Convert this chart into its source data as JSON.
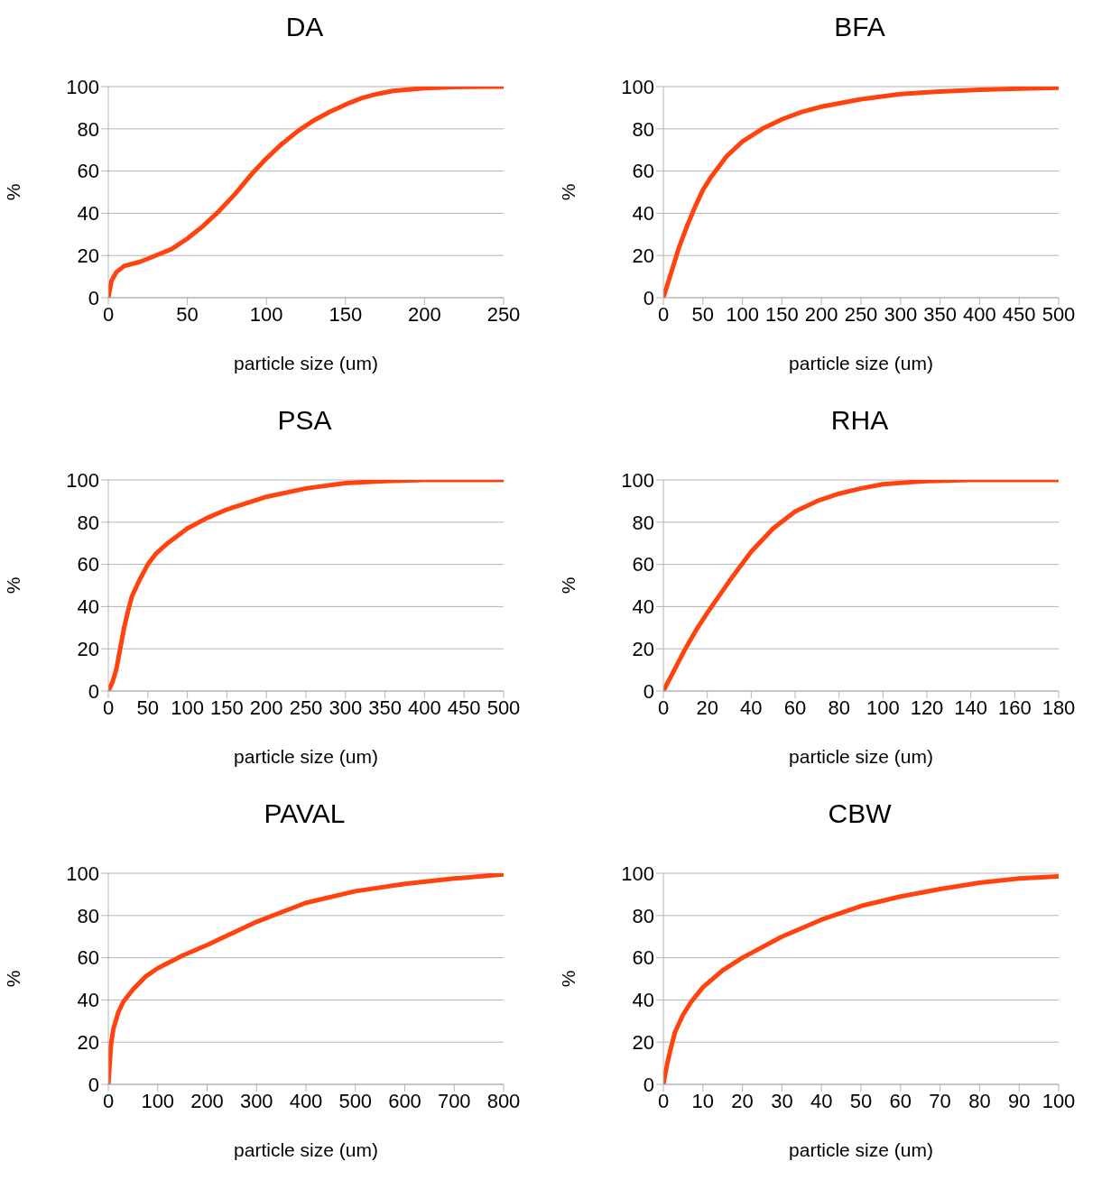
{
  "chart_data": [
    {
      "type": "line",
      "title": "DA",
      "xlabel": "particle size (um)",
      "ylabel": "%",
      "color": "#ff420e",
      "marker": "none",
      "grid": "y",
      "xlim": [
        0,
        250
      ],
      "xticks": [
        0,
        50,
        100,
        150,
        200,
        250
      ],
      "ylim": [
        0,
        100
      ],
      "yticks": [
        0,
        20,
        40,
        60,
        80,
        100
      ],
      "x": [
        0,
        2,
        5,
        10,
        20,
        30,
        40,
        50,
        60,
        70,
        80,
        90,
        100,
        110,
        120,
        130,
        140,
        150,
        160,
        170,
        180,
        200,
        225,
        250
      ],
      "values": [
        0,
        8,
        12,
        15,
        17,
        20,
        23,
        28,
        34,
        41,
        49,
        58,
        66,
        73,
        79,
        84,
        88,
        91.5,
        94.5,
        96.5,
        98,
        99.3,
        99.9,
        100
      ]
    },
    {
      "type": "line",
      "title": "BFA",
      "xlabel": "particle size (um)",
      "ylabel": "%",
      "color": "#ff420e",
      "marker": "none",
      "grid": "y",
      "xlim": [
        0,
        500
      ],
      "xticks": [
        0,
        50,
        100,
        150,
        200,
        250,
        300,
        350,
        400,
        450,
        500
      ],
      "ylim": [
        0,
        100
      ],
      "yticks": [
        0,
        20,
        40,
        60,
        80,
        100
      ],
      "x": [
        0,
        10,
        20,
        30,
        40,
        50,
        60,
        70,
        80,
        100,
        125,
        150,
        175,
        200,
        250,
        300,
        350,
        400,
        450,
        500
      ],
      "values": [
        0,
        12,
        24,
        34,
        43,
        51,
        57,
        62,
        67,
        74,
        80,
        84.5,
        88,
        90.5,
        94,
        96.5,
        97.7,
        98.5,
        99,
        99.5
      ]
    },
    {
      "type": "line",
      "title": "PSA",
      "xlabel": "particle size (um)",
      "ylabel": "%",
      "color": "#ff420e",
      "marker": "none",
      "grid": "y",
      "xlim": [
        0,
        500
      ],
      "xticks": [
        0,
        50,
        100,
        150,
        200,
        250,
        300,
        350,
        400,
        450,
        500
      ],
      "ylim": [
        0,
        100
      ],
      "yticks": [
        0,
        20,
        40,
        60,
        80,
        100
      ],
      "x": [
        0,
        5,
        10,
        15,
        20,
        25,
        30,
        40,
        50,
        60,
        75,
        100,
        125,
        150,
        200,
        250,
        300,
        350,
        400,
        500
      ],
      "values": [
        0,
        4,
        10,
        20,
        30,
        38,
        45,
        53,
        60,
        65,
        70,
        77,
        82,
        86,
        92,
        96,
        98.5,
        99.5,
        100,
        100
      ]
    },
    {
      "type": "line",
      "title": "RHA",
      "xlabel": "particle size (um)",
      "ylabel": "%",
      "color": "#ff420e",
      "marker": "none",
      "grid": "y",
      "xlim": [
        0,
        180
      ],
      "xticks": [
        0,
        20,
        40,
        60,
        80,
        100,
        120,
        140,
        160,
        180
      ],
      "ylim": [
        0,
        100
      ],
      "yticks": [
        0,
        20,
        40,
        60,
        80,
        100
      ],
      "x": [
        0,
        5,
        10,
        15,
        20,
        30,
        40,
        50,
        60,
        70,
        80,
        90,
        100,
        120,
        140,
        180
      ],
      "values": [
        0,
        10,
        20,
        29,
        37,
        52,
        66,
        77,
        85,
        90,
        93.5,
        96,
        98,
        99.5,
        100,
        100
      ]
    },
    {
      "type": "line",
      "title": "PAVAL",
      "xlabel": "particle size (um)",
      "ylabel": "%",
      "color": "#ff420e",
      "marker": "none",
      "grid": "y",
      "xlim": [
        0,
        800
      ],
      "xticks": [
        0,
        100,
        200,
        300,
        400,
        500,
        600,
        700,
        800
      ],
      "ylim": [
        0,
        100
      ],
      "yticks": [
        0,
        20,
        40,
        60,
        80,
        100
      ],
      "x": [
        0,
        3,
        5,
        10,
        20,
        30,
        50,
        75,
        100,
        150,
        200,
        300,
        400,
        500,
        600,
        700,
        800
      ],
      "values": [
        0,
        10,
        18,
        26,
        34,
        39,
        45,
        51,
        55,
        61,
        66,
        77,
        86,
        91.5,
        95,
        97.5,
        99.5
      ]
    },
    {
      "type": "line",
      "title": "CBW",
      "xlabel": "particle size (um)",
      "ylabel": "%",
      "color": "#ff420e",
      "marker": "none",
      "grid": "y",
      "xlim": [
        0,
        100
      ],
      "xticks": [
        0,
        10,
        20,
        30,
        40,
        50,
        60,
        70,
        80,
        90,
        100
      ],
      "ylim": [
        0,
        100
      ],
      "yticks": [
        0,
        20,
        40,
        60,
        80,
        100
      ],
      "x": [
        0,
        1,
        2,
        3,
        5,
        7,
        10,
        15,
        20,
        30,
        40,
        50,
        60,
        70,
        80,
        90,
        100
      ],
      "values": [
        0,
        10,
        18,
        25,
        33,
        39,
        46,
        54,
        60,
        70,
        78,
        84.5,
        89,
        92.5,
        95.5,
        97.5,
        98.5
      ]
    }
  ]
}
